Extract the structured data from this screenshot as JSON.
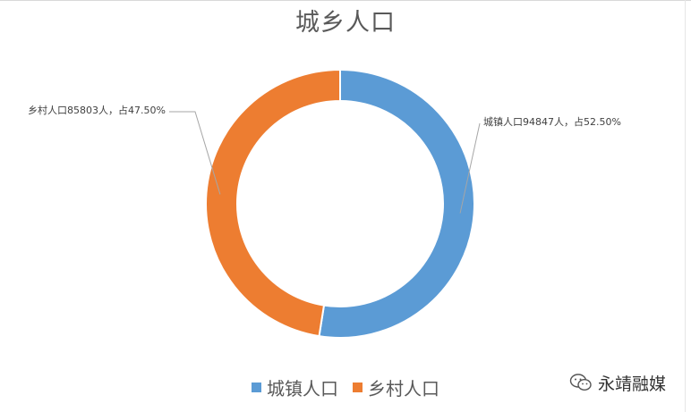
{
  "chart_data": {
    "type": "pie",
    "donut": true,
    "title": "城乡人口",
    "slices": [
      {
        "name": "城镇人口",
        "value": 94847,
        "percent_label": "52.50%",
        "label": "城镇人口94847人，占52.50%",
        "color": "#5B9BD5"
      },
      {
        "name": "乡村人口",
        "value": 85803,
        "percent_label": "47.50%",
        "label": "乡村人口85803人，占47.50%",
        "color": "#ED7D31"
      }
    ],
    "legend": {
      "position": "bottom"
    }
  },
  "watermark": {
    "text": "永靖融媒",
    "icon": "wechat-icon"
  }
}
